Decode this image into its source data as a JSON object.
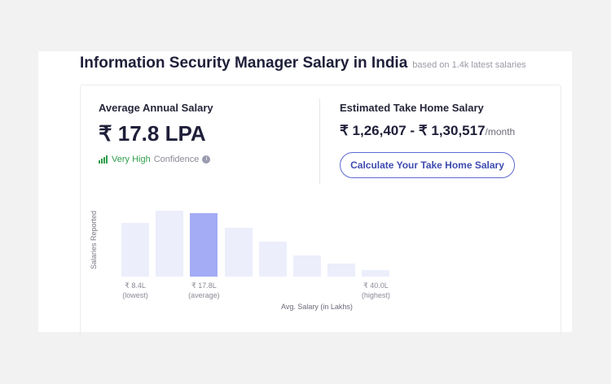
{
  "header": {
    "title": "Information Security Manager Salary in India",
    "subtitle": "based on 1.4k latest salaries"
  },
  "average": {
    "label": "Average Annual Salary",
    "value": "₹ 17.8 LPA",
    "confidence_level": "Very High",
    "confidence_label": "Confidence",
    "info_icon": "i"
  },
  "take_home": {
    "label": "Estimated Take Home Salary",
    "range": "₹ 1,26,407 - ₹ 1,30,517",
    "unit": "/month",
    "button_label": "Calculate Your Take Home Salary"
  },
  "chart_data": {
    "type": "bar",
    "ylabel": "Salaries Reported",
    "xlabel": "Avg. Salary (in Lakhs)",
    "values_relative": [
      66,
      81,
      78,
      60,
      43,
      26,
      16,
      8
    ],
    "highlight_index": 2,
    "colors": {
      "bar": "#eceefc",
      "highlight": "#a3acf5"
    },
    "ticks": [
      {
        "index": 0,
        "value": "₹ 8.4L",
        "note": "(lowest)"
      },
      {
        "index": 2,
        "value": "₹ 17.8L",
        "note": "(average)"
      },
      {
        "index": 7,
        "value": "₹ 40.0L",
        "note": "(highest)"
      }
    ]
  }
}
